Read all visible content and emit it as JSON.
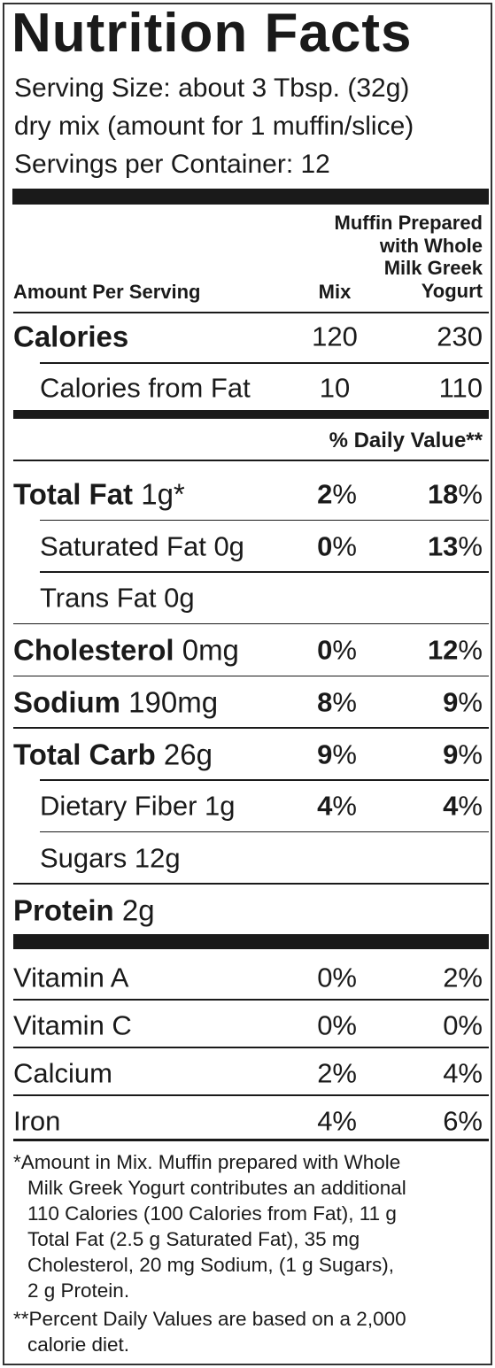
{
  "title": "Nutrition Facts",
  "serving": [
    "Serving Size: about 3 Tbsp. (32g)",
    "dry mix (amount for 1 muffin/slice)",
    "Servings per Container: 12"
  ],
  "columns": {
    "amount": "Amount Per Serving",
    "mix": "Mix",
    "prepared": [
      "Muffin Prepared",
      "with Whole",
      "Milk Greek",
      "Yogurt"
    ]
  },
  "calories": [
    {
      "label": "Calories",
      "mix": "120",
      "prepared": "230"
    },
    {
      "label": "Calories from Fat",
      "mix": "10",
      "prepared": "110"
    }
  ],
  "daily_value_header": "% Daily Value**",
  "nutrients": [
    {
      "name": "Total Fat",
      "amount": "1g*",
      "mix": {
        "value": "2",
        "unit": "%"
      },
      "prepared": {
        "value": "18",
        "unit": "%"
      },
      "sub": [
        {
          "name": "Saturated Fat 0g",
          "mix": {
            "value": "0",
            "unit": "%"
          },
          "prepared": {
            "value": "13",
            "unit": "%"
          }
        },
        {
          "name": "Trans Fat 0g"
        }
      ]
    },
    {
      "name": "Cholesterol",
      "amount": "0mg",
      "mix": {
        "value": "0",
        "unit": "%"
      },
      "prepared": {
        "value": "12",
        "unit": "%"
      }
    },
    {
      "name": "Sodium",
      "amount": "190mg",
      "mix": {
        "value": "8",
        "unit": "%"
      },
      "prepared": {
        "value": "9",
        "unit": "%"
      }
    },
    {
      "name": "Total Carb",
      "amount": "26g",
      "mix": {
        "value": "9",
        "unit": "%"
      },
      "prepared": {
        "value": "9",
        "unit": "%"
      },
      "sub": [
        {
          "name": "Dietary Fiber 1g",
          "mix": {
            "value": "4",
            "unit": "%"
          },
          "prepared": {
            "value": "4",
            "unit": "%"
          }
        },
        {
          "name": "Sugars 12g"
        }
      ]
    },
    {
      "name": "Protein",
      "amount": "2g"
    }
  ],
  "vitamins": [
    {
      "name": "Vitamin A",
      "mix": "0%",
      "prepared": "2%"
    },
    {
      "name": "Vitamin C",
      "mix": "0%",
      "prepared": "0%"
    },
    {
      "name": "Calcium",
      "mix": "2%",
      "prepared": "4%"
    },
    {
      "name": "Iron",
      "mix": "4%",
      "prepared": "6%"
    }
  ],
  "footnotes": [
    [
      "*Amount in Mix. Muffin prepared with Whole",
      "Milk Greek Yogurt contributes an additional",
      "110 Calories (100 Calories from Fat), 11 g",
      "Total Fat (2.5 g Saturated Fat), 35 mg",
      "Cholesterol, 20 mg Sodium, (1 g Sugars),",
      "2 g Protein."
    ],
    [
      "**Percent Daily Values are based on a 2,000",
      "calorie diet."
    ]
  ]
}
